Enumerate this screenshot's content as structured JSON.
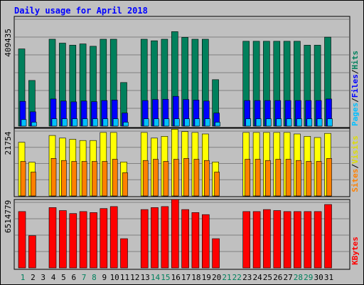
{
  "chart_data": [
    {
      "type": "bar",
      "title": "Daily usage for April 2018",
      "categories": [
        "1",
        "2",
        "3",
        "4",
        "5",
        "6",
        "7",
        "8",
        "9",
        "10",
        "11",
        "12",
        "13",
        "14",
        "15",
        "16",
        "17",
        "18",
        "19",
        "20",
        "21",
        "22",
        "23",
        "24",
        "25",
        "26",
        "27",
        "28",
        "29",
        "30",
        "31"
      ],
      "weekend_days": [
        "1",
        "7",
        "8",
        "14",
        "15",
        "21",
        "22",
        "28",
        "29"
      ],
      "ytick": "409435",
      "ymax": 409435,
      "ylabel_parts": [
        "Pages",
        "Files",
        "Hits"
      ],
      "series": [
        {
          "name": "Hits",
          "color": "#00805c",
          "values": [
            296000,
            175000,
            null,
            333000,
            318000,
            310000,
            315000,
            306000,
            333000,
            333000,
            167000,
            null,
            333000,
            327000,
            333000,
            362000,
            340000,
            333000,
            333000,
            178000,
            null,
            null,
            325000,
            325000,
            325000,
            325000,
            325000,
            325000,
            310000,
            310000,
            341000
          ]
        },
        {
          "name": "Files",
          "color": "#0000ff",
          "values": [
            95000,
            55000,
            null,
            104000,
            96000,
            93000,
            96000,
            94000,
            98000,
            100000,
            50000,
            null,
            98000,
            102000,
            103000,
            114000,
            102000,
            100000,
            96000,
            50000,
            null,
            null,
            98000,
            98000,
            98000,
            98000,
            98000,
            98000,
            98000,
            98000,
            104000
          ]
        },
        {
          "name": "Pages",
          "color": "#00bfff",
          "values": [
            25000,
            15000,
            null,
            28000,
            28000,
            28000,
            28000,
            28000,
            28000,
            28000,
            15000,
            null,
            28000,
            28000,
            28000,
            28000,
            28000,
            28000,
            28000,
            15000,
            null,
            null,
            28000,
            28000,
            28000,
            28000,
            28000,
            28000,
            28000,
            28000,
            28000
          ]
        }
      ]
    },
    {
      "type": "bar",
      "ytick": "21754",
      "ymax": 21754,
      "ylabel_parts": [
        "Sites",
        "Visits"
      ],
      "series": [
        {
          "name": "Visits",
          "color": "#ffff00",
          "values": [
            18000,
            11300,
            null,
            20300,
            19400,
            19000,
            18600,
            18600,
            21300,
            21300,
            11400,
            null,
            21300,
            19400,
            20000,
            22400,
            21600,
            21300,
            20800,
            11400,
            null,
            null,
            21300,
            21300,
            21300,
            21300,
            21300,
            20800,
            20000,
            19600,
            21000
          ]
        },
        {
          "name": "Sites",
          "color": "#ff8000",
          "values": [
            11600,
            8000,
            null,
            12600,
            11900,
            11600,
            11600,
            11600,
            11600,
            12300,
            7800,
            null,
            11900,
            12300,
            11600,
            12300,
            12600,
            12300,
            11900,
            8000,
            null,
            null,
            12300,
            12300,
            11900,
            12300,
            12300,
            11900,
            11600,
            11600,
            12600
          ]
        }
      ]
    },
    {
      "type": "bar",
      "ytick": "6514779",
      "ymax": 6514779,
      "ylabel_parts": [
        "KBytes"
      ],
      "series": [
        {
          "name": "KBytes",
          "color": "#ff0000",
          "values": [
            5600000,
            3200000,
            null,
            6000000,
            5700000,
            5400000,
            5600000,
            5500000,
            5900000,
            6100000,
            2900000,
            null,
            5800000,
            6000000,
            6100000,
            6800000,
            5800000,
            5500000,
            5300000,
            2900000,
            null,
            null,
            5600000,
            5600000,
            5800000,
            5700000,
            5600000,
            5600000,
            5600000,
            5600000,
            6300000
          ]
        }
      ]
    }
  ]
}
